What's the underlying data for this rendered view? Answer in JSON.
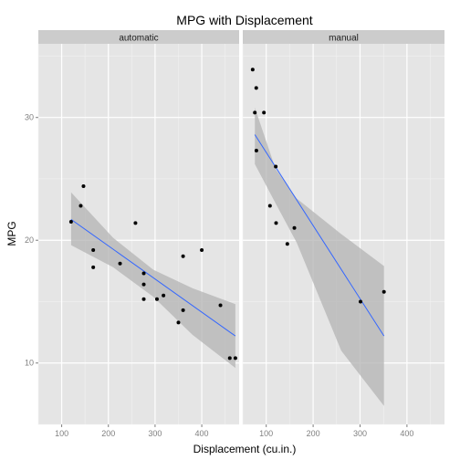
{
  "chart_data": {
    "type": "scatter",
    "title": "MPG with Displacement",
    "xlabel": "Displacement (cu.in.)",
    "ylabel": "MPG",
    "xlim": [
      50,
      480
    ],
    "ylim": [
      5,
      36
    ],
    "x_ticks": [
      100,
      200,
      300,
      400
    ],
    "y_ticks": [
      10,
      20,
      30
    ],
    "grid": true,
    "legend": "none",
    "colors": {
      "panel_bg": "#e5e5e5",
      "grid_major": "#ffffff",
      "grid_minor": "#f2f2f2",
      "strip_bg": "#cccccc",
      "point": "#000000",
      "fit_line": "#3366ff",
      "ribbon": "#b3b3b3",
      "tick_label": "#7f7f7f"
    },
    "panels": [
      {
        "facet": "automatic",
        "points": [
          [
            120.1,
            21.5
          ],
          [
            140.8,
            22.8
          ],
          [
            146.7,
            24.4
          ],
          [
            167.6,
            19.2
          ],
          [
            167.6,
            17.8
          ],
          [
            225,
            18.1
          ],
          [
            258,
            21.4
          ],
          [
            275.8,
            17.3
          ],
          [
            275.8,
            15.2
          ],
          [
            275.8,
            16.4
          ],
          [
            304,
            15.2
          ],
          [
            318,
            15.5
          ],
          [
            350,
            13.3
          ],
          [
            360,
            18.7
          ],
          [
            360,
            14.3
          ],
          [
            400,
            19.2
          ],
          [
            440,
            14.7
          ],
          [
            460,
            10.4
          ],
          [
            472,
            10.4
          ]
        ],
        "fit": {
          "x": [
            120.1,
            472
          ],
          "y": [
            21.7,
            12.2
          ]
        },
        "ribbon": {
          "x": [
            120.1,
            210,
            296.05,
            380,
            472
          ],
          "upper": [
            23.9,
            20.2,
            17.6,
            16.1,
            14.8
          ],
          "lower": [
            19.6,
            17.8,
            15.4,
            12.3,
            9.6
          ]
        }
      },
      {
        "facet": "manual",
        "points": [
          [
            71.1,
            33.9
          ],
          [
            75.7,
            30.4
          ],
          [
            78.7,
            32.4
          ],
          [
            79,
            27.3
          ],
          [
            95.1,
            30.4
          ],
          [
            108,
            22.8
          ],
          [
            120.3,
            26
          ],
          [
            121,
            21.4
          ],
          [
            145,
            19.7
          ],
          [
            160,
            21
          ],
          [
            301,
            15
          ],
          [
            351,
            15.8
          ]
        ],
        "fit": {
          "x": [
            75.7,
            351
          ],
          "y": [
            28.6,
            12.2
          ]
        },
        "ribbon": {
          "x": [
            75.7,
            120,
            165,
            260,
            351
          ],
          "upper": [
            30.8,
            25.8,
            23.4,
            20.5,
            17.9
          ],
          "lower": [
            26.2,
            23.0,
            19.8,
            11.0,
            6.5
          ]
        }
      }
    ]
  }
}
